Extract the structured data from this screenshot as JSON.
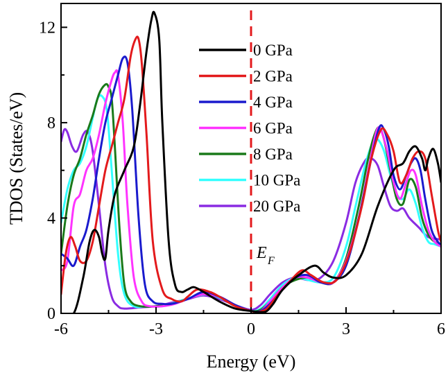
{
  "chart_data": {
    "type": "line",
    "title": "",
    "xlabel": "Energy (eV)",
    "ylabel": "TDOS (States/eV)",
    "xlim": [
      -6,
      6
    ],
    "ylim": [
      0,
      13
    ],
    "xticks": [
      -6,
      -3,
      0,
      3,
      6
    ],
    "xtick_labels": [
      "-6",
      "-3",
      "0",
      "3",
      "6"
    ],
    "yticks": [
      0,
      4,
      8,
      12
    ],
    "ytick_labels": [
      "0",
      "4",
      "8",
      "12"
    ],
    "fermi_level": {
      "x": 0,
      "label": "E",
      "subscript": "F",
      "color": "#e31a1c"
    },
    "legend_position": "top-center",
    "series": [
      {
        "name": "0 GPa",
        "color": "#000000",
        "x": [
          -6.0,
          -5.6,
          -5.3,
          -5.1,
          -4.95,
          -4.8,
          -4.7,
          -4.6,
          -4.5,
          -4.3,
          -4.0,
          -3.7,
          -3.5,
          -3.3,
          -3.15,
          -3.05,
          -2.9,
          -2.8,
          -2.6,
          -2.4,
          -2.2,
          -2.0,
          -1.8,
          -1.5,
          -1.0,
          -0.5,
          0.0,
          0.3,
          0.5,
          0.7,
          1.0,
          1.5,
          2.0,
          2.3,
          2.6,
          3.0,
          3.5,
          4.0,
          4.5,
          4.8,
          5.0,
          5.2,
          5.4,
          5.5,
          5.6,
          5.75,
          5.9,
          6.0
        ],
        "y": [
          0,
          0,
          1.5,
          3.0,
          3.5,
          3.2,
          2.5,
          2.3,
          3.5,
          5.0,
          6.0,
          7.0,
          8.8,
          11.0,
          12.3,
          12.6,
          11.5,
          8.0,
          3.0,
          1.2,
          0.9,
          1.0,
          1.1,
          0.9,
          0.5,
          0.2,
          0.1,
          0.05,
          0.1,
          0.4,
          1.0,
          1.6,
          2.0,
          1.7,
          1.5,
          1.6,
          2.5,
          4.5,
          6.0,
          6.3,
          6.8,
          7.0,
          6.5,
          6.0,
          6.5,
          6.9,
          6.3,
          5.5
        ]
      },
      {
        "name": "2 GPa",
        "color": "#e31a1c",
        "x": [
          -6.0,
          -5.85,
          -5.7,
          -5.55,
          -5.4,
          -5.2,
          -5.0,
          -4.8,
          -4.6,
          -4.4,
          -4.2,
          -4.0,
          -3.8,
          -3.65,
          -3.55,
          -3.45,
          -3.3,
          -3.1,
          -2.8,
          -2.5,
          -2.2,
          -2.0,
          -1.7,
          -1.3,
          -1.0,
          -0.5,
          0.0,
          0.2,
          0.5,
          0.8,
          1.2,
          1.6,
          1.9,
          2.3,
          2.7,
          3.1,
          3.5,
          3.8,
          4.1,
          4.3,
          4.5,
          4.7,
          4.9,
          5.1,
          5.3,
          5.5,
          5.7,
          5.9,
          6.0
        ],
        "y": [
          0.8,
          2.5,
          3.2,
          2.8,
          2.2,
          2.2,
          3.0,
          4.5,
          6.0,
          7.0,
          8.0,
          9.0,
          10.8,
          11.5,
          11.5,
          10.5,
          7.5,
          3.0,
          1.0,
          0.6,
          0.5,
          0.7,
          1.0,
          0.9,
          0.7,
          0.3,
          0.1,
          0.05,
          0.2,
          0.7,
          1.3,
          1.8,
          1.6,
          1.3,
          1.4,
          2.5,
          4.5,
          6.5,
          7.7,
          7.5,
          6.8,
          5.5,
          5.8,
          6.5,
          6.8,
          6.5,
          5.0,
          3.5,
          3.0
        ]
      },
      {
        "name": "4 GPa",
        "color": "#1a1acd",
        "x": [
          -6.0,
          -5.8,
          -5.6,
          -5.4,
          -5.2,
          -5.0,
          -4.8,
          -4.6,
          -4.4,
          -4.2,
          -4.05,
          -3.9,
          -3.75,
          -3.55,
          -3.35,
          -3.1,
          -2.8,
          -2.5,
          -2.0,
          -1.5,
          -1.0,
          -0.5,
          0.0,
          0.3,
          0.6,
          1.0,
          1.4,
          1.8,
          2.2,
          2.6,
          3.0,
          3.4,
          3.8,
          4.05,
          4.2,
          4.35,
          4.5,
          4.7,
          4.9,
          5.05,
          5.2,
          5.35,
          5.5,
          5.7,
          5.9,
          6.0
        ],
        "y": [
          2.5,
          2.3,
          2.0,
          2.8,
          3.5,
          4.8,
          6.5,
          8.0,
          9.0,
          10.0,
          10.7,
          10.5,
          8.5,
          4.0,
          1.2,
          0.5,
          0.4,
          0.4,
          0.6,
          0.9,
          0.7,
          0.35,
          0.1,
          0.1,
          0.4,
          1.0,
          1.5,
          1.6,
          1.3,
          1.3,
          2.0,
          4.0,
          6.5,
          7.8,
          7.7,
          7.0,
          5.8,
          5.2,
          5.8,
          6.3,
          6.5,
          6.0,
          4.8,
          3.5,
          3.0,
          2.9
        ]
      },
      {
        "name": "6 GPa",
        "color": "#ff33ff",
        "x": [
          -6.0,
          -5.8,
          -5.6,
          -5.4,
          -5.2,
          -5.0,
          -4.8,
          -4.6,
          -4.4,
          -4.3,
          -4.2,
          -4.05,
          -3.9,
          -3.7,
          -3.45,
          -3.2,
          -2.8,
          -2.4,
          -2.0,
          -1.5,
          -1.0,
          -0.5,
          0.0,
          0.3,
          0.6,
          1.0,
          1.4,
          1.8,
          2.2,
          2.6,
          3.0,
          3.4,
          3.7,
          3.95,
          4.1,
          4.3,
          4.5,
          4.7,
          4.9,
          5.05,
          5.2,
          5.4,
          5.6,
          5.8,
          6.0
        ],
        "y": [
          1.8,
          2.2,
          4.5,
          5.0,
          6.0,
          6.5,
          7.5,
          8.8,
          9.8,
          10.1,
          10.0,
          8.0,
          4.5,
          1.5,
          0.5,
          0.3,
          0.3,
          0.4,
          0.6,
          0.8,
          0.7,
          0.35,
          0.1,
          0.1,
          0.5,
          1.1,
          1.5,
          1.5,
          1.3,
          1.3,
          2.2,
          4.0,
          6.0,
          7.6,
          7.7,
          6.8,
          5.5,
          4.8,
          5.5,
          6.0,
          5.8,
          4.5,
          3.5,
          3.0,
          2.8
        ]
      },
      {
        "name": "8 GPa",
        "color": "#1a7a1a",
        "x": [
          -6.0,
          -5.8,
          -5.6,
          -5.4,
          -5.2,
          -5.0,
          -4.8,
          -4.6,
          -4.5,
          -4.4,
          -4.3,
          -4.15,
          -4.0,
          -3.8,
          -3.5,
          -3.0,
          -2.5,
          -2.0,
          -1.5,
          -1.0,
          -0.5,
          0.0,
          0.3,
          0.6,
          1.0,
          1.4,
          1.8,
          2.2,
          2.6,
          3.0,
          3.4,
          3.7,
          3.9,
          4.05,
          4.2,
          4.4,
          4.6,
          4.8,
          5.0,
          5.2,
          5.4,
          5.6,
          5.8,
          6.0
        ],
        "y": [
          2.5,
          4.5,
          5.8,
          6.5,
          7.5,
          8.3,
          9.2,
          9.6,
          9.5,
          9.0,
          7.0,
          3.5,
          1.2,
          0.5,
          0.3,
          0.3,
          0.4,
          0.6,
          0.8,
          0.7,
          0.35,
          0.1,
          0.15,
          0.5,
          1.1,
          1.4,
          1.5,
          1.3,
          1.3,
          2.3,
          4.5,
          6.5,
          7.5,
          7.8,
          7.3,
          6.0,
          4.8,
          4.6,
          5.6,
          5.3,
          4.0,
          3.3,
          3.0,
          2.9
        ]
      },
      {
        "name": "10 GPa",
        "color": "#33ffff",
        "x": [
          -6.0,
          -5.8,
          -5.6,
          -5.4,
          -5.2,
          -5.0,
          -4.85,
          -4.7,
          -4.55,
          -4.4,
          -4.2,
          -4.0,
          -3.7,
          -3.3,
          -2.8,
          -2.3,
          -1.8,
          -1.3,
          -0.9,
          -0.5,
          0.0,
          0.3,
          0.6,
          1.0,
          1.4,
          1.8,
          2.2,
          2.6,
          3.0,
          3.3,
          3.6,
          3.85,
          4.0,
          4.2,
          4.4,
          4.6,
          4.8,
          5.0,
          5.2,
          5.4,
          5.6,
          5.8,
          6.0
        ],
        "y": [
          3.8,
          5.2,
          6.0,
          6.3,
          7.0,
          8.2,
          9.0,
          9.1,
          8.5,
          6.0,
          2.5,
          0.8,
          0.3,
          0.3,
          0.3,
          0.5,
          0.7,
          0.8,
          0.6,
          0.35,
          0.1,
          0.2,
          0.6,
          1.2,
          1.5,
          1.4,
          1.3,
          1.5,
          2.8,
          4.5,
          6.2,
          7.2,
          7.3,
          6.8,
          5.8,
          5.0,
          4.8,
          5.2,
          4.6,
          3.6,
          3.0,
          2.9,
          2.8
        ]
      },
      {
        "name": "20 GPa",
        "color": "#8a2be2",
        "x": [
          -6.0,
          -5.9,
          -5.8,
          -5.65,
          -5.5,
          -5.3,
          -5.15,
          -5.0,
          -4.8,
          -4.6,
          -4.4,
          -4.2,
          -4.0,
          -3.5,
          -3.0,
          -2.5,
          -2.0,
          -1.5,
          -1.0,
          -0.5,
          0.0,
          0.3,
          0.6,
          1.0,
          1.4,
          1.8,
          2.2,
          2.6,
          3.0,
          3.3,
          3.6,
          3.8,
          4.0,
          4.2,
          4.4,
          4.6,
          4.8,
          5.0,
          5.3,
          5.6,
          6.0
        ],
        "y": [
          7.2,
          7.7,
          7.6,
          7.0,
          6.8,
          7.5,
          7.6,
          6.8,
          4.5,
          2.0,
          0.7,
          0.3,
          0.2,
          0.25,
          0.3,
          0.45,
          0.6,
          0.75,
          0.6,
          0.35,
          0.15,
          0.35,
          0.8,
          1.3,
          1.5,
          1.4,
          1.5,
          2.2,
          3.8,
          5.5,
          6.4,
          6.5,
          6.2,
          5.3,
          4.5,
          4.3,
          4.4,
          4.0,
          3.6,
          3.2,
          3.1
        ]
      }
    ]
  }
}
